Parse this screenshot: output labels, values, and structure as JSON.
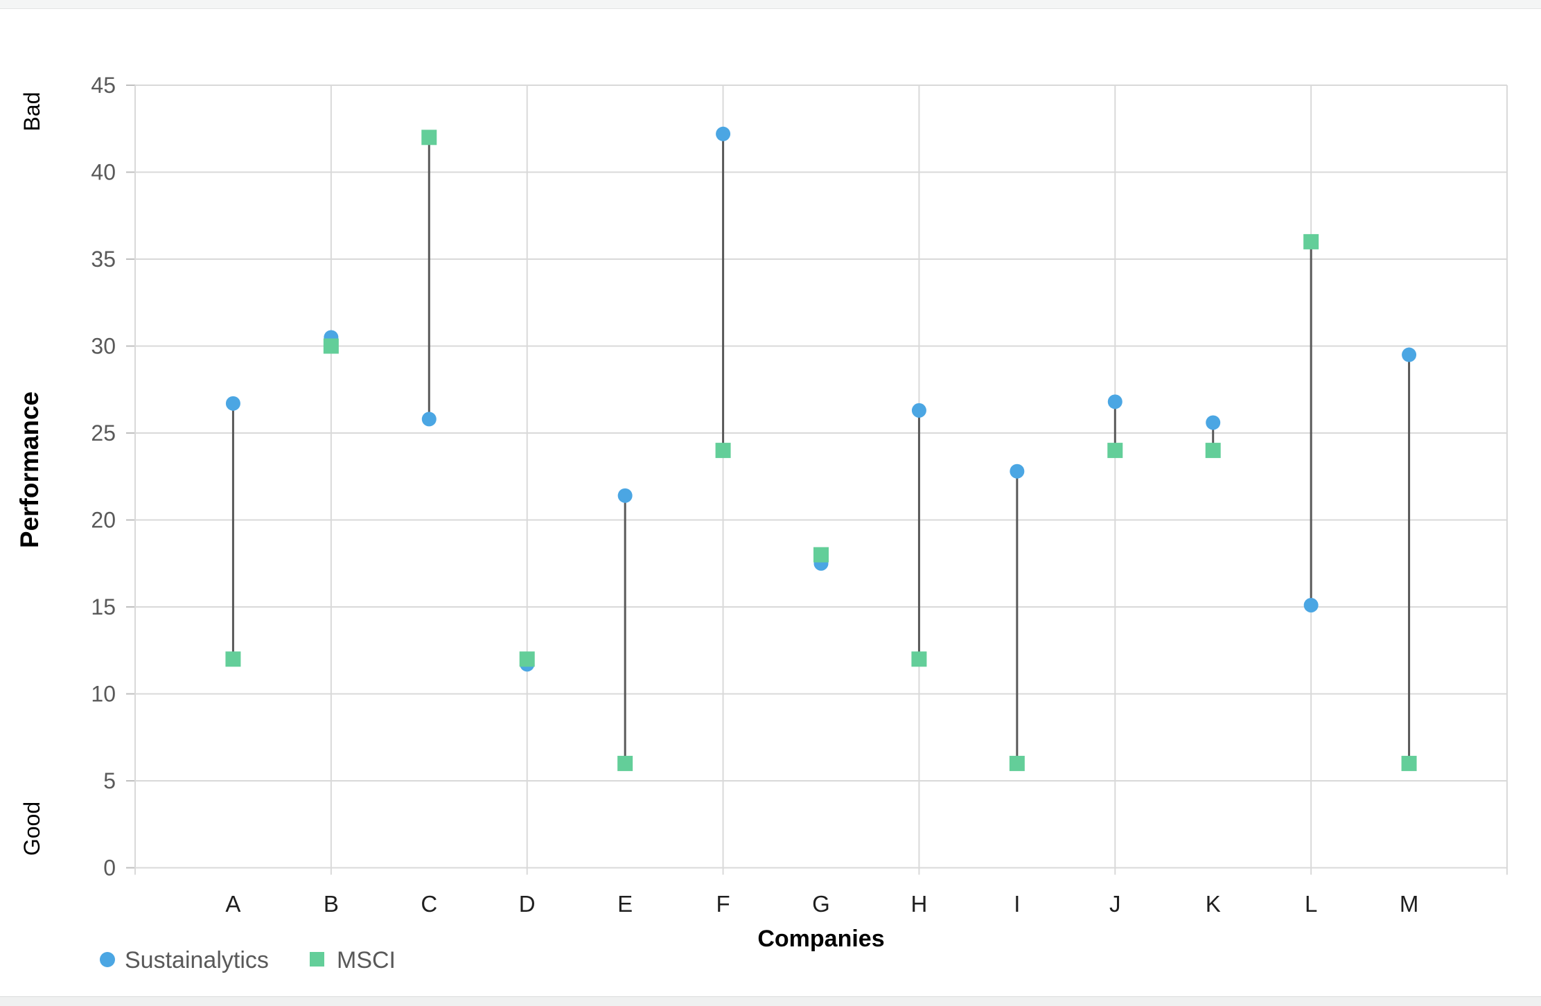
{
  "chart_data": {
    "type": "scatter",
    "title": "",
    "xlabel": "Companies",
    "ylabel": "Performance",
    "y_axis_annotations": {
      "top": "Bad",
      "bottom": "Good"
    },
    "categories": [
      "A",
      "B",
      "C",
      "D",
      "E",
      "F",
      "G",
      "H",
      "I",
      "J",
      "K",
      "L",
      "M"
    ],
    "series": [
      {
        "name": "Sustainalytics",
        "marker": "circle",
        "color": "#4BA6E3",
        "values": [
          26.7,
          30.5,
          25.8,
          11.7,
          21.4,
          42.2,
          17.5,
          26.3,
          22.8,
          26.8,
          25.6,
          15.1,
          29.5
        ]
      },
      {
        "name": "MSCI",
        "marker": "square",
        "color": "#63CE99",
        "values": [
          12,
          30,
          42,
          12,
          6,
          24,
          18,
          12,
          6,
          24,
          24,
          36,
          6
        ]
      }
    ],
    "pairs_connected_by_vertical_line": true,
    "connector_color": "#595959",
    "ylim": [
      0,
      45
    ],
    "yticks": [
      0,
      5,
      10,
      15,
      20,
      25,
      30,
      35,
      40,
      45
    ],
    "grid": {
      "horizontal": "every 5 units",
      "vertical": "every 2 categories",
      "color": "#D9D9D9"
    },
    "legend": {
      "position": "bottom-left",
      "entries": [
        "Sustainalytics",
        "MSCI"
      ]
    },
    "text_colors": {
      "tick_labels": "#595959",
      "category_labels": "#1f1f1f",
      "axis_titles": "#000000",
      "legend_text": "#595959"
    }
  }
}
